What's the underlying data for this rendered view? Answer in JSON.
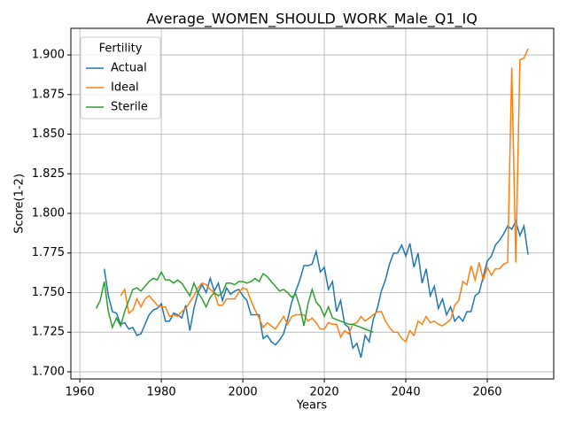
{
  "chart_data": {
    "type": "line",
    "title": "Average_WOMEN_SHOULD_WORK_Male_Q1_IQ",
    "xlabel": "Years",
    "ylabel": "Score(1-2)",
    "legend_title": "Fertility",
    "legend": "upper left",
    "grid": true,
    "xlim": [
      1957.8,
      2076.3
    ],
    "ylim": [
      1.6955,
      1.9168
    ],
    "xticks": [
      1960,
      1980,
      2000,
      2020,
      2040,
      2060
    ],
    "yticks": [
      {
        "value": 1.7,
        "label": "1.700"
      },
      {
        "value": 1.725,
        "label": "1.725"
      },
      {
        "value": 1.75,
        "label": "1.750"
      },
      {
        "value": 1.775,
        "label": "1.775"
      },
      {
        "value": 1.8,
        "label": "1.800"
      },
      {
        "value": 1.825,
        "label": "1.825"
      },
      {
        "value": 1.85,
        "label": "1.850"
      },
      {
        "value": 1.875,
        "label": "1.875"
      },
      {
        "value": 1.9,
        "label": "1.900"
      }
    ],
    "x": [
      1964,
      1965,
      1966,
      1967,
      1968,
      1969,
      1970,
      1971,
      1972,
      1973,
      1974,
      1975,
      1976,
      1977,
      1978,
      1979,
      1980,
      1981,
      1982,
      1983,
      1984,
      1985,
      1986,
      1987,
      1988,
      1989,
      1990,
      1991,
      1992,
      1993,
      1994,
      1995,
      1996,
      1997,
      1998,
      1999,
      2000,
      2001,
      2002,
      2003,
      2004,
      2005,
      2006,
      2007,
      2008,
      2009,
      2010,
      2011,
      2012,
      2013,
      2014,
      2015,
      2016,
      2017,
      2018,
      2019,
      2020,
      2021,
      2022,
      2023,
      2024,
      2025,
      2026,
      2027,
      2028,
      2029,
      2030,
      2031,
      2032,
      2033,
      2034,
      2035,
      2036,
      2037,
      2038,
      2039,
      2040,
      2041,
      2042,
      2043,
      2044,
      2045,
      2046,
      2047,
      2048,
      2049,
      2050,
      2051,
      2052,
      2053,
      2054,
      2055,
      2056,
      2057,
      2058,
      2059,
      2060,
      2061,
      2062,
      2063,
      2064,
      2065,
      2066,
      2067,
      2068,
      2069,
      2070
    ],
    "series": [
      {
        "name": "Actual",
        "color": "#1f77b4",
        "values": [
          null,
          null,
          1.765,
          1.748,
          1.738,
          1.737,
          1.73,
          1.731,
          1.727,
          1.728,
          1.723,
          1.724,
          1.73,
          1.736,
          1.739,
          1.74,
          1.743,
          1.732,
          1.732,
          1.737,
          1.736,
          1.734,
          1.742,
          1.726,
          1.74,
          1.75,
          1.755,
          1.75,
          1.759,
          1.751,
          1.756,
          1.745,
          1.753,
          1.749,
          1.751,
          1.752,
          1.748,
          1.745,
          1.736,
          1.736,
          1.736,
          1.721,
          1.723,
          1.719,
          1.717,
          1.72,
          1.724,
          1.733,
          1.744,
          1.751,
          1.758,
          1.767,
          1.767,
          1.768,
          1.776,
          1.763,
          1.766,
          1.752,
          1.757,
          1.738,
          1.745,
          1.73,
          1.728,
          1.715,
          1.718,
          1.709,
          1.723,
          1.719,
          1.733,
          1.74,
          1.751,
          1.758,
          1.768,
          1.775,
          1.775,
          1.78,
          1.773,
          1.781,
          1.766,
          1.775,
          1.756,
          1.765,
          1.748,
          1.754,
          1.74,
          1.746,
          1.736,
          1.741,
          1.732,
          1.735,
          1.732,
          1.738,
          1.738,
          1.748,
          1.75,
          1.76,
          1.77,
          1.773,
          1.78,
          1.783,
          1.787,
          1.792,
          1.79,
          1.795,
          1.786,
          1.792,
          1.774
        ]
      },
      {
        "name": "Ideal",
        "color": "#ff7f0e",
        "values": [
          null,
          null,
          null,
          null,
          null,
          null,
          1.748,
          1.752,
          1.737,
          1.739,
          1.746,
          1.741,
          1.746,
          1.748,
          1.745,
          1.742,
          1.741,
          1.741,
          1.735,
          1.736,
          1.735,
          1.738,
          1.74,
          1.744,
          1.748,
          1.753,
          1.756,
          1.755,
          1.752,
          1.75,
          1.742,
          1.742,
          1.746,
          1.746,
          1.746,
          1.75,
          1.753,
          1.752,
          1.745,
          1.739,
          1.734,
          1.728,
          1.731,
          1.729,
          1.727,
          1.731,
          1.735,
          1.73,
          1.735,
          1.736,
          1.736,
          1.736,
          1.732,
          1.734,
          1.731,
          1.727,
          1.727,
          1.731,
          1.73,
          1.73,
          1.722,
          1.726,
          1.724,
          1.73,
          1.731,
          1.735,
          1.732,
          1.734,
          1.736,
          1.738,
          1.738,
          1.732,
          1.728,
          1.725,
          1.725,
          1.721,
          1.719,
          1.726,
          1.723,
          1.732,
          1.73,
          1.735,
          1.731,
          1.732,
          1.73,
          1.729,
          1.731,
          1.733,
          1.742,
          1.745,
          1.757,
          1.755,
          1.767,
          1.758,
          1.769,
          1.758,
          1.766,
          1.761,
          1.765,
          1.765,
          1.768,
          1.769,
          1.892,
          1.769,
          1.897,
          1.898,
          1.904
        ]
      },
      {
        "name": "Sterile",
        "color": "#2ca02c",
        "values": [
          1.74,
          1.745,
          1.757,
          1.738,
          1.728,
          1.734,
          1.729,
          1.738,
          1.745,
          1.752,
          1.753,
          1.751,
          1.754,
          1.757,
          1.759,
          1.758,
          1.763,
          1.758,
          1.758,
          1.756,
          1.758,
          1.756,
          1.752,
          1.748,
          1.756,
          1.75,
          1.746,
          1.741,
          1.747,
          1.75,
          1.748,
          1.75,
          1.756,
          1.756,
          1.755,
          1.757,
          1.757,
          1.756,
          1.757,
          1.759,
          1.757,
          1.762,
          1.76,
          1.757,
          1.754,
          1.751,
          1.752,
          1.75,
          1.747,
          1.749,
          1.741,
          1.729,
          1.743,
          1.752,
          1.744,
          1.741,
          1.735,
          1.741,
          1.734,
          1.733,
          1.732,
          1.731,
          1.73,
          1.73,
          1.729,
          1.728,
          1.727,
          1.726,
          1.725,
          null,
          null,
          null,
          null,
          null,
          null,
          null,
          null,
          null,
          null,
          null,
          null,
          null,
          null,
          null,
          null,
          null,
          null,
          null,
          null,
          null,
          null,
          null,
          null,
          null,
          null,
          null,
          null,
          null,
          null,
          null,
          null,
          null,
          null,
          null,
          null,
          null,
          null
        ]
      }
    ]
  }
}
